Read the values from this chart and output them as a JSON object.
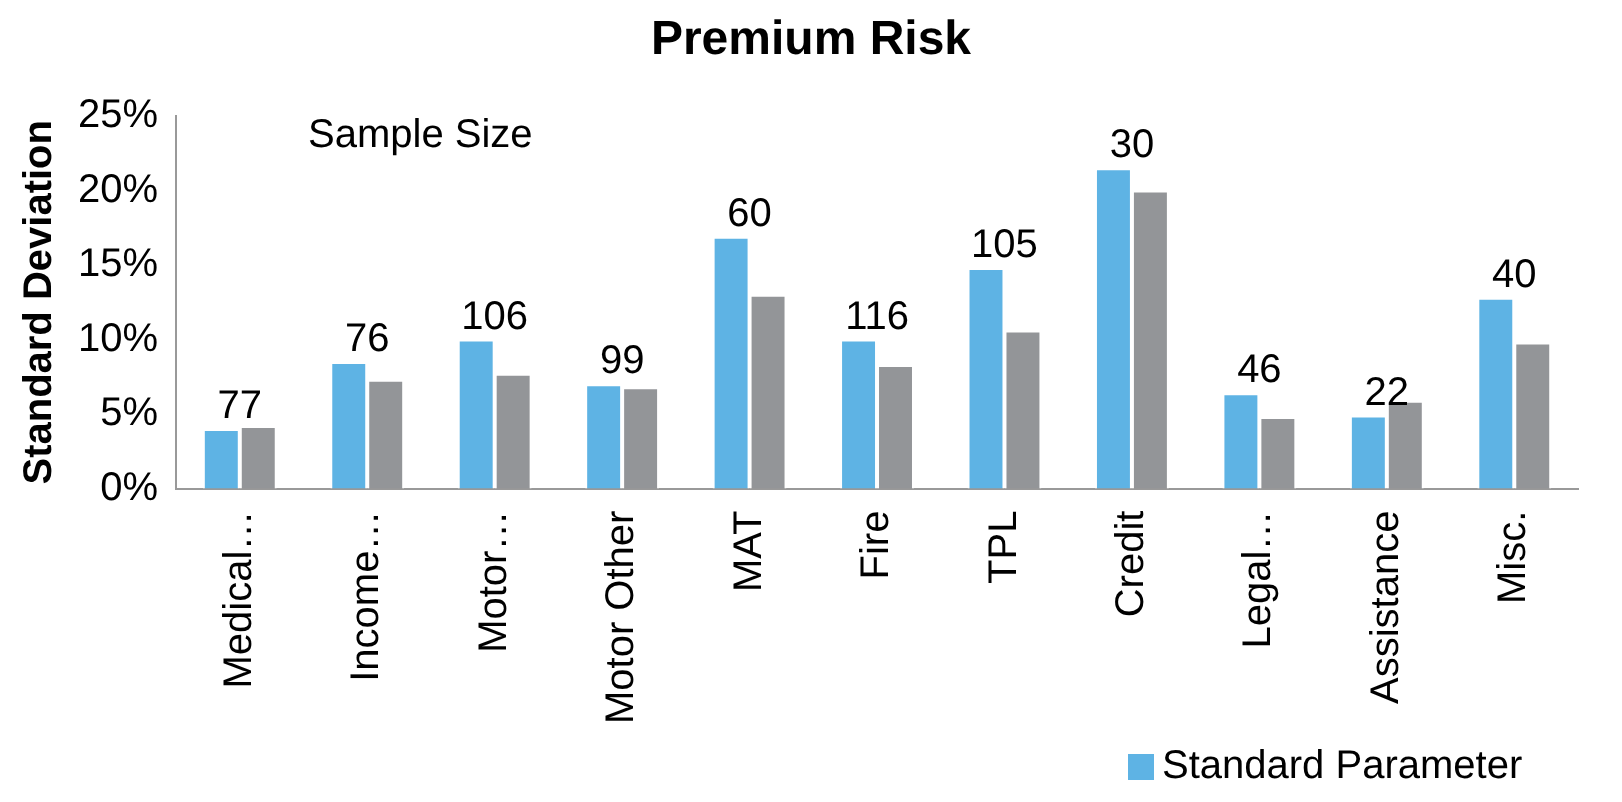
{
  "chart_data": {
    "type": "bar",
    "title": "Premium Risk",
    "ylabel": "Standard Deviation",
    "categories": [
      "Medical…",
      "Income…",
      "Motor…",
      "Motor Other",
      "MAT",
      "Fire",
      "TPL",
      "Credit",
      "Legal…",
      "Assistance",
      "Misc."
    ],
    "series": [
      {
        "name": "Standard Parameter",
        "color": "#5eb3e4",
        "values": [
          4.0,
          8.5,
          10.0,
          7.0,
          16.9,
          10.0,
          14.8,
          21.5,
          6.4,
          4.9,
          12.8
        ]
      },
      {
        "color": "#939598",
        "values": [
          4.2,
          7.3,
          7.7,
          6.8,
          13.0,
          8.3,
          10.6,
          20.0,
          4.8,
          5.9,
          9.8
        ]
      }
    ],
    "ylim": [
      0,
      25
    ],
    "yticks": [
      {
        "value": 0,
        "label": "0%"
      },
      {
        "value": 5,
        "label": "5%"
      },
      {
        "value": 10,
        "label": "10%"
      },
      {
        "value": 15,
        "label": "15%"
      },
      {
        "value": 20,
        "label": "20%"
      },
      {
        "value": 25,
        "label": "25%"
      }
    ],
    "grid": false,
    "legend": "bottom right",
    "annotations": [
      "Sample Size",
      {
        "text": "77",
        "x": "Medical…",
        "y": 4.0
      },
      {
        "text": "76",
        "x": "Income…",
        "y": 8.5
      },
      {
        "text": "106",
        "x": "Motor…",
        "y": 10.0
      },
      {
        "text": "99",
        "x": "Motor Other",
        "y": 7.0
      },
      {
        "text": "60",
        "x": "MAT",
        "y": 16.9
      },
      {
        "text": "116",
        "x": "Fire",
        "y": 10.0
      },
      {
        "text": "105",
        "x": "TPL",
        "y": 14.8
      },
      {
        "text": "30",
        "x": "Credit",
        "y": 21.5
      },
      {
        "text": "46",
        "x": "Legal…",
        "y": 6.4
      },
      {
        "text": "22",
        "x": "Assistance",
        "y": 4.9
      },
      {
        "text": "40",
        "x": "Misc.",
        "y": 12.8
      }
    ]
  }
}
